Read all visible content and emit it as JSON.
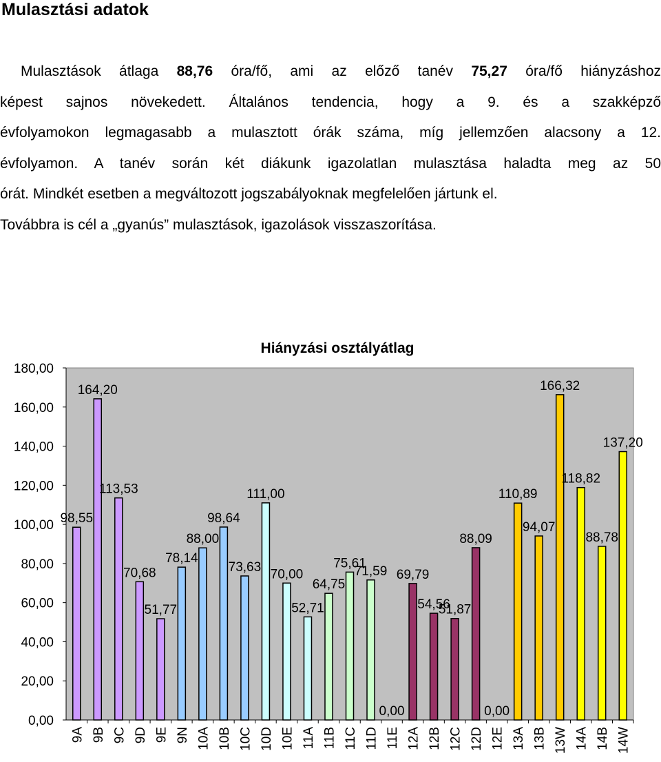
{
  "heading": "Mulasztási adatok",
  "paragraph": {
    "line1": {
      "t1": "Mulasztások átlaga ",
      "b1": "88,76",
      "t2": " óra/fő, ami az előző tanév ",
      "b2": "75,27",
      "t3": " óra/fő hiányzáshoz"
    },
    "line2": "képest sajnos növekedett. Általános tendencia, hogy a 9. és a szakképző",
    "line3": "évfolyamokon legmagasabb a mulasztott órák száma, míg jellemzően alacsony a 12.",
    "line4": "évfolyamon. A tanév során két diákunk igazolatlan mulasztása haladta meg az 50",
    "line5": "órát. Mindkét esetben a megváltozott jogszabályoknak megfelelően jártunk el.",
    "line6": "Továbbra is cél a „gyanús” mulasztások, igazolások visszaszorítása."
  },
  "chart_data": {
    "type": "bar",
    "title": "Hiányzási osztályátlag",
    "xlabel": "",
    "ylabel": "",
    "ylim": [
      0,
      180
    ],
    "yticks": [
      "0,00",
      "20,00",
      "40,00",
      "60,00",
      "80,00",
      "100,00",
      "120,00",
      "140,00",
      "160,00",
      "180,00"
    ],
    "grid": false,
    "legend": "none",
    "plot_background": "#c0c0c0",
    "categories": [
      "9A",
      "9B",
      "9C",
      "9D",
      "9E",
      "9N",
      "10A",
      "10B",
      "10C",
      "10D",
      "10E",
      "11A",
      "11B",
      "11C",
      "11D",
      "11E",
      "12A",
      "12B",
      "12C",
      "12D",
      "12E",
      "13A",
      "13B",
      "13W",
      "14A",
      "14B",
      "14W"
    ],
    "values": [
      98.55,
      164.2,
      113.53,
      70.68,
      51.77,
      78.14,
      88.0,
      98.64,
      73.63,
      111.0,
      70.0,
      52.71,
      64.75,
      75.61,
      71.59,
      0.0,
      69.79,
      54.56,
      51.87,
      88.09,
      0.0,
      110.89,
      94.07,
      166.32,
      118.82,
      88.78,
      137.2
    ],
    "data_labels": [
      "98,55",
      "164,20",
      "113,53",
      "70,68",
      "51,77",
      "78,14",
      "88,00",
      "98,64",
      "73,63",
      "111,00",
      "70,00",
      "52,71",
      "64,75",
      "75,61",
      "71,59",
      "0,00",
      "69,79",
      "54,56",
      "51,87",
      "88,09",
      "0,00",
      "110,89",
      "94,07",
      "166,32",
      "118,82",
      "88,78",
      "137,20"
    ],
    "colors": [
      "#cc99ff",
      "#cc99ff",
      "#cc99ff",
      "#cc99ff",
      "#cc99ff",
      "#99ccff",
      "#99ccff",
      "#99ccff",
      "#99ccff",
      "#ccffff",
      "#ccffff",
      "#ccffff",
      "#ccffcc",
      "#ccffcc",
      "#ccffcc",
      "#ccffcc",
      "#993366",
      "#993366",
      "#993366",
      "#993366",
      "#993366",
      "#ffcc00",
      "#ffcc00",
      "#ffcc00",
      "#ffff00",
      "#ffff00",
      "#ffff00"
    ]
  }
}
